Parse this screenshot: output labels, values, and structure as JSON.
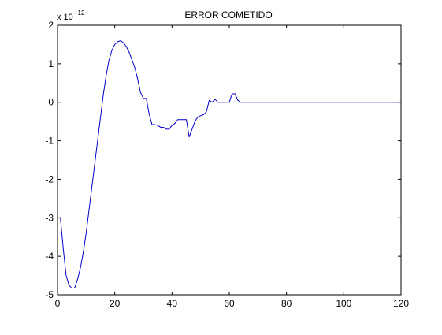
{
  "chart_data": {
    "type": "line",
    "title": "ERROR COMETIDO",
    "xlabel": "",
    "ylabel": "",
    "exponent_label": {
      "base": "x 10",
      "exponent": "-12"
    },
    "xlim": [
      0,
      120
    ],
    "ylim": [
      -5,
      2
    ],
    "x_ticks": [
      0,
      20,
      40,
      60,
      80,
      100,
      120
    ],
    "x_tick_labels": [
      "0",
      "20",
      "40",
      "60",
      "80",
      "100",
      "120"
    ],
    "y_ticks": [
      -5,
      -4,
      -3,
      -2,
      -1,
      0,
      1,
      2
    ],
    "y_tick_labels": [
      "-5",
      "-4",
      "-3",
      "-2",
      "-1",
      "0",
      "1",
      "2"
    ],
    "grid": false,
    "series": [
      {
        "color": "#0000cc",
        "x": [
          1,
          2,
          3,
          4,
          5,
          6,
          7,
          8,
          9,
          10,
          11,
          12,
          13,
          14,
          15,
          16,
          17,
          18,
          19,
          20,
          21,
          22,
          23,
          24,
          25,
          26,
          27,
          28,
          29,
          30,
          31,
          32,
          33,
          34,
          35,
          36,
          37,
          38,
          39,
          40,
          41,
          42,
          43,
          44,
          45,
          46,
          47,
          48,
          49,
          50,
          51,
          52,
          53,
          54,
          55,
          56,
          57,
          58,
          59,
          60,
          61,
          62,
          63,
          64,
          65,
          70,
          80,
          90,
          100,
          110,
          120
        ],
        "y": [
          -3.0,
          -3.8,
          -4.5,
          -4.75,
          -4.83,
          -4.82,
          -4.6,
          -4.3,
          -3.9,
          -3.4,
          -2.8,
          -2.2,
          -1.6,
          -1.0,
          -0.4,
          0.2,
          0.7,
          1.1,
          1.35,
          1.5,
          1.57,
          1.6,
          1.55,
          1.45,
          1.3,
          1.1,
          0.9,
          0.6,
          0.25,
          0.1,
          0.1,
          -0.3,
          -0.58,
          -0.58,
          -0.6,
          -0.65,
          -0.65,
          -0.7,
          -0.7,
          -0.6,
          -0.55,
          -0.45,
          -0.45,
          -0.45,
          -0.45,
          -0.9,
          -0.7,
          -0.5,
          -0.38,
          -0.35,
          -0.32,
          -0.25,
          0.05,
          0.0,
          0.08,
          0.0,
          0.0,
          0.0,
          0.0,
          0.0,
          0.22,
          0.22,
          0.05,
          0.0,
          0.0,
          0.0,
          0.0,
          0.0,
          0.0,
          0.0,
          0.0
        ]
      }
    ]
  }
}
